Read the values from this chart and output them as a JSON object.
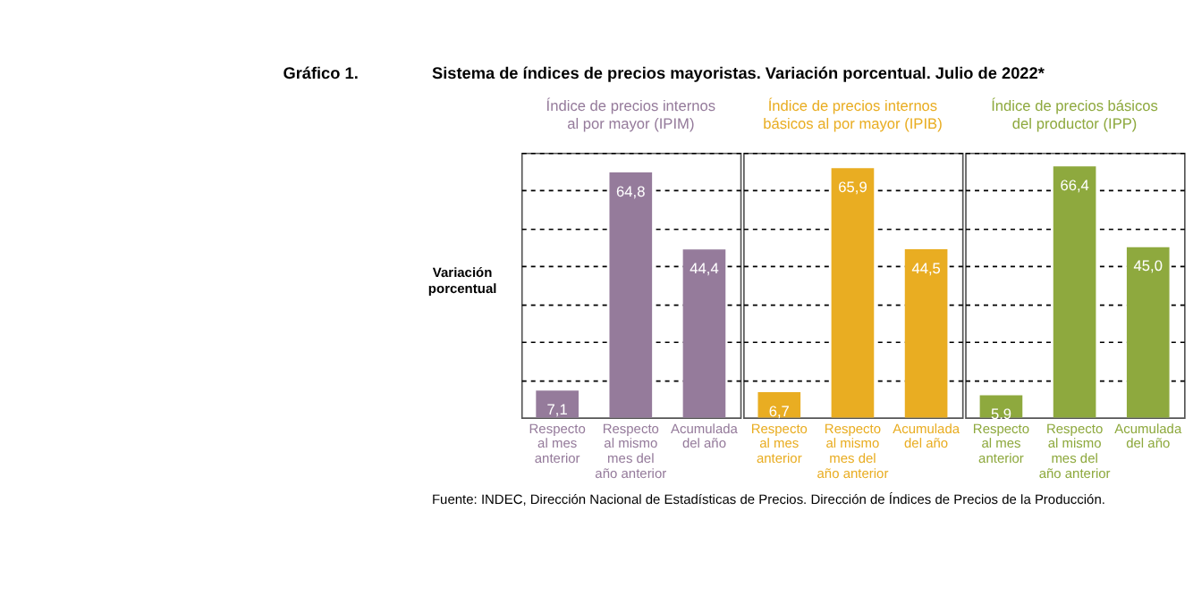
{
  "chart_data": [
    {
      "type": "bar",
      "title": "Índice de precios internos al por mayor (IPIM)",
      "ylabel": "Variación porcentual",
      "annotations": [
        "Gráfico 1.",
        "Sistema de índices de precios mayoristas. Variación porcentual. Julio de 2022*",
        "Fuente: INDEC, Dirección Nacional de Estadísticas de Precios. Dirección de Índices de Precios de la Producción."
      ],
      "categories": [
        "Respecto al mes anterior",
        "Respecto al mismo mes del año anterior",
        "Acumulada del año"
      ],
      "values": [
        7.1,
        64.8,
        44.4
      ],
      "value_labels": [
        "7,1",
        "64,8",
        "44,4"
      ],
      "color": "#957b9b",
      "ylim": [
        0,
        70
      ],
      "yticks": [
        {
          "value": 10,
          "label": null
        },
        {
          "value": 20,
          "label": null
        },
        {
          "value": 30,
          "label": null
        },
        {
          "value": 40,
          "label": null
        },
        {
          "value": 50,
          "label": null
        },
        {
          "value": 60,
          "label": null
        },
        {
          "value": 70,
          "label": null
        }
      ],
      "grid": "y",
      "tick_labels": "x"
    },
    {
      "type": "bar",
      "title": "Índice de precios internos básicos al por mayor (IPIB)",
      "categories": [
        "Respecto al mes anterior",
        "Respecto al mismo mes del año anterior",
        "Acumulada del año"
      ],
      "values": [
        6.7,
        65.9,
        44.5
      ],
      "value_labels": [
        "6,7",
        "65,9",
        "44,5"
      ],
      "color": "#e9ad22",
      "ylim": [
        0,
        70
      ],
      "yticks": [
        {
          "value": 10,
          "label": null
        },
        {
          "value": 20,
          "label": null
        },
        {
          "value": 30,
          "label": null
        },
        {
          "value": 40,
          "label": null
        },
        {
          "value": 50,
          "label": null
        },
        {
          "value": 60,
          "label": null
        },
        {
          "value": 70,
          "label": null
        }
      ],
      "grid": "y",
      "tick_labels": "x"
    },
    {
      "type": "bar",
      "title": "Índice de precios básicos del productor (IPP)",
      "categories": [
        "Respecto al mes anterior",
        "Respecto al mismo mes del año anterior",
        "Acumulada del año"
      ],
      "values": [
        5.9,
        66.4,
        45.0
      ],
      "value_labels": [
        "5,9",
        "66,4",
        "45,0"
      ],
      "color": "#8ea93e",
      "ylim": [
        0,
        70
      ],
      "yticks": [
        {
          "value": 10,
          "label": null
        },
        {
          "value": 20,
          "label": null
        },
        {
          "value": 30,
          "label": null
        },
        {
          "value": 40,
          "label": null
        },
        {
          "value": 50,
          "label": null
        },
        {
          "value": 60,
          "label": null
        },
        {
          "value": 70,
          "label": null
        }
      ],
      "grid": "y",
      "tick_labels": "x"
    }
  ]
}
